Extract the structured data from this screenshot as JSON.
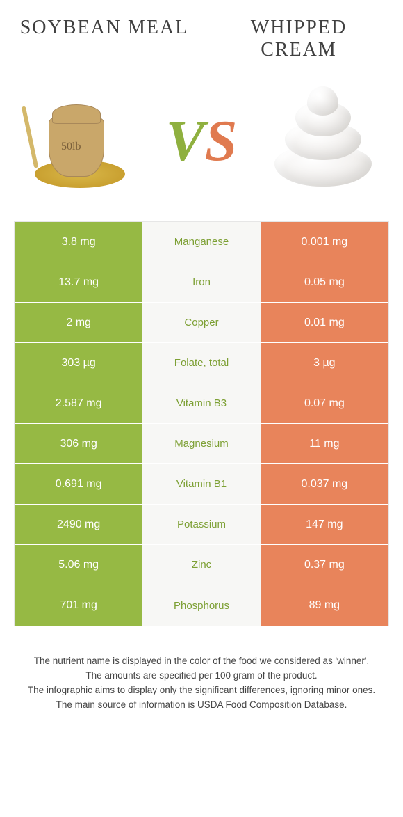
{
  "header": {
    "left_title": "Soybean meal",
    "right_title": "Whipped cream",
    "sack_label": "50lb"
  },
  "vs": {
    "v": "V",
    "s": "S"
  },
  "colors": {
    "green": "#96b944",
    "orange": "#e8845b",
    "mid_bg": "#f7f7f5",
    "mid_green_text": "#7da034",
    "mid_orange_text": "#d96f46",
    "page_bg": "#ffffff",
    "title_text": "#404040"
  },
  "table": {
    "left_color": "green",
    "right_color": "orange",
    "rows": [
      {
        "left": "3.8 mg",
        "nutrient": "Manganese",
        "right": "0.001 mg",
        "winner": "green"
      },
      {
        "left": "13.7 mg",
        "nutrient": "Iron",
        "right": "0.05 mg",
        "winner": "green"
      },
      {
        "left": "2 mg",
        "nutrient": "Copper",
        "right": "0.01 mg",
        "winner": "green"
      },
      {
        "left": "303 µg",
        "nutrient": "Folate, total",
        "right": "3 µg",
        "winner": "green"
      },
      {
        "left": "2.587 mg",
        "nutrient": "Vitamin B3",
        "right": "0.07 mg",
        "winner": "green"
      },
      {
        "left": "306 mg",
        "nutrient": "Magnesium",
        "right": "11 mg",
        "winner": "green"
      },
      {
        "left": "0.691 mg",
        "nutrient": "Vitamin B1",
        "right": "0.037 mg",
        "winner": "green"
      },
      {
        "left": "2490 mg",
        "nutrient": "Potassium",
        "right": "147 mg",
        "winner": "green"
      },
      {
        "left": "5.06 mg",
        "nutrient": "Zinc",
        "right": "0.37 mg",
        "winner": "green"
      },
      {
        "left": "701 mg",
        "nutrient": "Phosphorus",
        "right": "89 mg",
        "winner": "green"
      }
    ]
  },
  "footer": {
    "line1": "The nutrient name is displayed in the color of the food we considered as 'winner'.",
    "line2": "The amounts are specified per 100 gram of the product.",
    "line3": "The infographic aims to display only the significant differences, ignoring minor ones.",
    "line4": "The main source of information is USDA Food Composition Database."
  }
}
